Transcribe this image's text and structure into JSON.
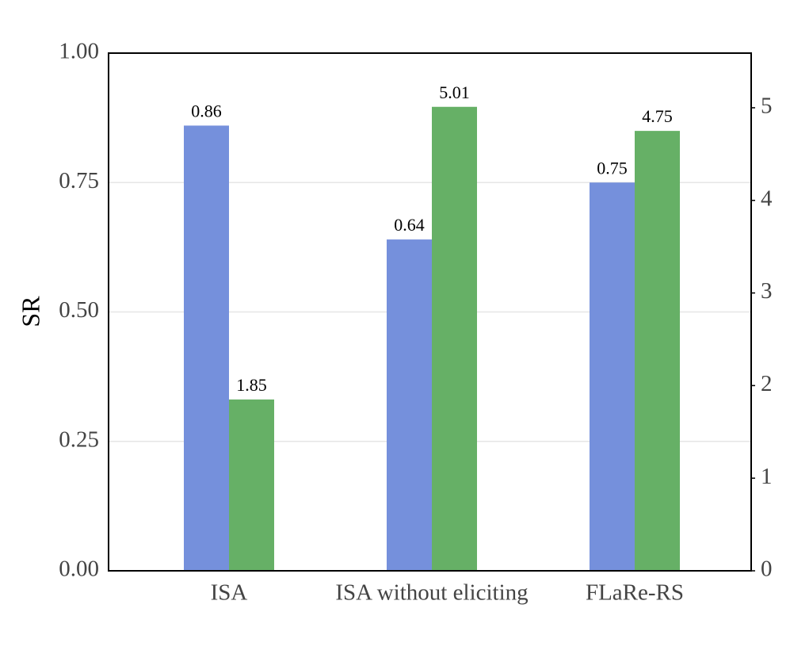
{
  "chart_data": {
    "type": "bar",
    "y_label": "SR",
    "categories": [
      "ISA",
      "ISA without eliciting",
      "FLaRe-RS"
    ],
    "series": [
      {
        "color": "#7590dc",
        "values": [
          0.86,
          0.64,
          0.75
        ]
      },
      {
        "color": "#66b066",
        "values": [
          1.85,
          5.01,
          4.75
        ],
        "axis": "y2"
      }
    ],
    "ylim": [
      0,
      1
    ],
    "yticks": [
      {
        "value": 0,
        "label": "0.00"
      },
      {
        "value": 0.25,
        "label": "0.25"
      },
      {
        "value": 0.5,
        "label": "0.50"
      },
      {
        "value": 0.75,
        "label": "0.75"
      },
      {
        "value": 1,
        "label": "1.00"
      }
    ],
    "y2lim": [
      0,
      5.59
    ],
    "y2ticks": [
      0,
      1,
      2,
      3,
      4,
      5
    ],
    "grid": true
  }
}
